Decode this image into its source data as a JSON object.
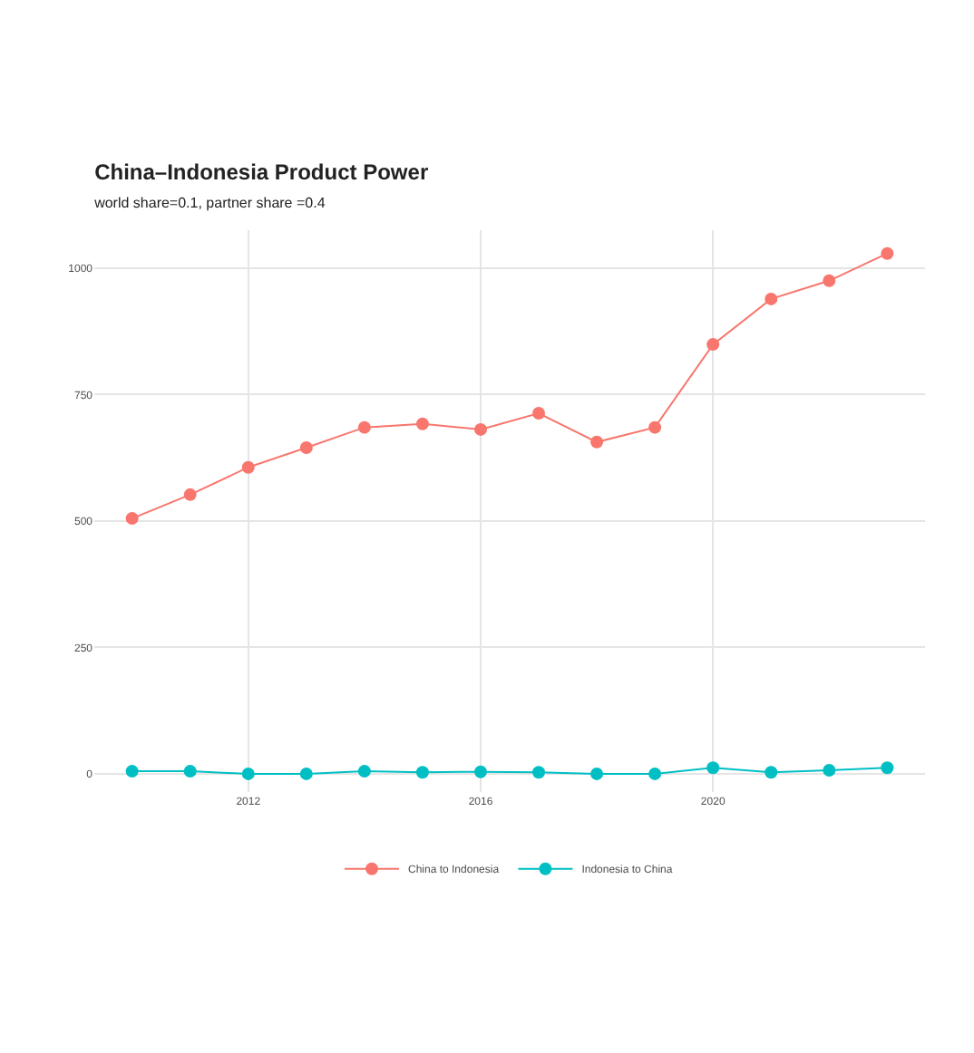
{
  "chart_data": {
    "type": "line",
    "title": "China–Indonesia Product Power",
    "subtitle": "world share=0.1, partner share =0.4",
    "x": [
      2010,
      2011,
      2012,
      2013,
      2014,
      2015,
      2016,
      2017,
      2018,
      2019,
      2020,
      2021,
      2022,
      2023
    ],
    "series": [
      {
        "name": "China to Indonesia",
        "color": "#f8766d",
        "values": [
          505,
          552,
          606,
          645,
          685,
          692,
          681,
          713,
          656,
          685,
          849,
          939,
          975,
          1029
        ]
      },
      {
        "name": "Indonesia to China",
        "color": "#00bfc4",
        "values": [
          5,
          5,
          0,
          0,
          5,
          3,
          4,
          3,
          0,
          0,
          12,
          3,
          7,
          12
        ]
      }
    ],
    "xlim": [
      2009.35,
      2023.65
    ],
    "xticks": [
      2012,
      2016,
      2020
    ],
    "ylim": [
      -36,
      1075
    ],
    "yticks": [
      0,
      250,
      500,
      750,
      1000
    ],
    "grid": true,
    "legend": "bottom",
    "marker": "circle",
    "line_style": "solid"
  }
}
